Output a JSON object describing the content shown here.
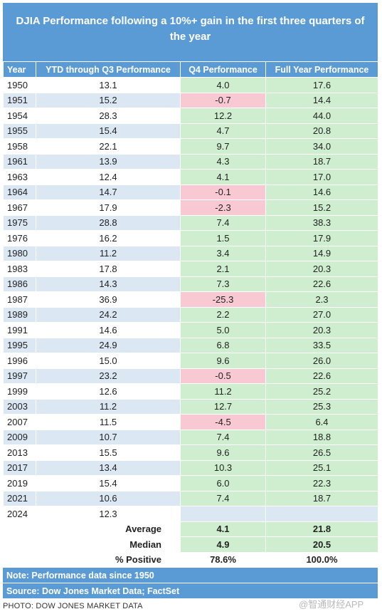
{
  "title": "DJIA Performance following a 10%+ gain in the first three quarters of the year",
  "columns": [
    "Year",
    "YTD through Q3 Performance",
    "Q4 Performance",
    "Full Year Performance"
  ],
  "colors": {
    "header": "#5b9bd5",
    "positive": "#cfeecf",
    "negative": "#f8c9d2",
    "stripe": "#dce7f4"
  },
  "chart_data": {
    "type": "table",
    "title": "DJIA Performance following a 10%+ gain in the first three quarters of the year",
    "columns": [
      "Year",
      "YTD through Q3 Performance",
      "Q4 Performance",
      "Full Year Performance"
    ],
    "rows": [
      {
        "year": "1950",
        "ytd": "13.1",
        "q4": "4.0",
        "full": "17.6"
      },
      {
        "year": "1951",
        "ytd": "15.2",
        "q4": "-0.7",
        "full": "14.4"
      },
      {
        "year": "1954",
        "ytd": "28.3",
        "q4": "12.2",
        "full": "44.0"
      },
      {
        "year": "1955",
        "ytd": "15.4",
        "q4": "4.7",
        "full": "20.8"
      },
      {
        "year": "1958",
        "ytd": "22.1",
        "q4": "9.7",
        "full": "34.0"
      },
      {
        "year": "1961",
        "ytd": "13.9",
        "q4": "4.3",
        "full": "18.7"
      },
      {
        "year": "1963",
        "ytd": "12.4",
        "q4": "4.1",
        "full": "17.0"
      },
      {
        "year": "1964",
        "ytd": "14.7",
        "q4": "-0.1",
        "full": "14.6"
      },
      {
        "year": "1967",
        "ytd": "17.9",
        "q4": "-2.3",
        "full": "15.2"
      },
      {
        "year": "1975",
        "ytd": "28.8",
        "q4": "7.4",
        "full": "38.3"
      },
      {
        "year": "1976",
        "ytd": "16.2",
        "q4": "1.5",
        "full": "17.9"
      },
      {
        "year": "1980",
        "ytd": "11.2",
        "q4": "3.4",
        "full": "14.9"
      },
      {
        "year": "1983",
        "ytd": "17.8",
        "q4": "2.1",
        "full": "20.3"
      },
      {
        "year": "1986",
        "ytd": "14.3",
        "q4": "7.3",
        "full": "22.6"
      },
      {
        "year": "1987",
        "ytd": "36.9",
        "q4": "-25.3",
        "full": "2.3"
      },
      {
        "year": "1989",
        "ytd": "24.2",
        "q4": "2.2",
        "full": "27.0"
      },
      {
        "year": "1991",
        "ytd": "14.6",
        "q4": "5.0",
        "full": "20.3"
      },
      {
        "year": "1995",
        "ytd": "24.9",
        "q4": "6.8",
        "full": "33.5"
      },
      {
        "year": "1996",
        "ytd": "15.0",
        "q4": "9.6",
        "full": "26.0"
      },
      {
        "year": "1997",
        "ytd": "23.2",
        "q4": "-0.5",
        "full": "22.6"
      },
      {
        "year": "1999",
        "ytd": "12.6",
        "q4": "11.2",
        "full": "25.2"
      },
      {
        "year": "2003",
        "ytd": "11.2",
        "q4": "12.7",
        "full": "25.3"
      },
      {
        "year": "2007",
        "ytd": "11.5",
        "q4": "-4.5",
        "full": "6.4"
      },
      {
        "year": "2009",
        "ytd": "10.7",
        "q4": "7.4",
        "full": "18.8"
      },
      {
        "year": "2013",
        "ytd": "15.5",
        "q4": "9.6",
        "full": "26.5"
      },
      {
        "year": "2017",
        "ytd": "13.4",
        "q4": "10.3",
        "full": "25.1"
      },
      {
        "year": "2019",
        "ytd": "15.4",
        "q4": "6.0",
        "full": "22.3"
      },
      {
        "year": "2021",
        "ytd": "10.6",
        "q4": "7.4",
        "full": "18.7"
      },
      {
        "year": "2024",
        "ytd": "12.3",
        "q4": "",
        "full": ""
      }
    ],
    "summary": [
      {
        "label": "Average",
        "q4": "4.1",
        "full": "21.8"
      },
      {
        "label": "Median",
        "q4": "4.9",
        "full": "20.5"
      },
      {
        "label": "% Positive",
        "q4": "78.6%",
        "full": "100.0%"
      }
    ]
  },
  "notes": [
    "Note: Performance data since 1950",
    "Source: Dow Jones Market Data; FactSet"
  ],
  "credit": "PHOTO: DOW JONES MARKET DATA",
  "watermark": "@智通财经APP"
}
